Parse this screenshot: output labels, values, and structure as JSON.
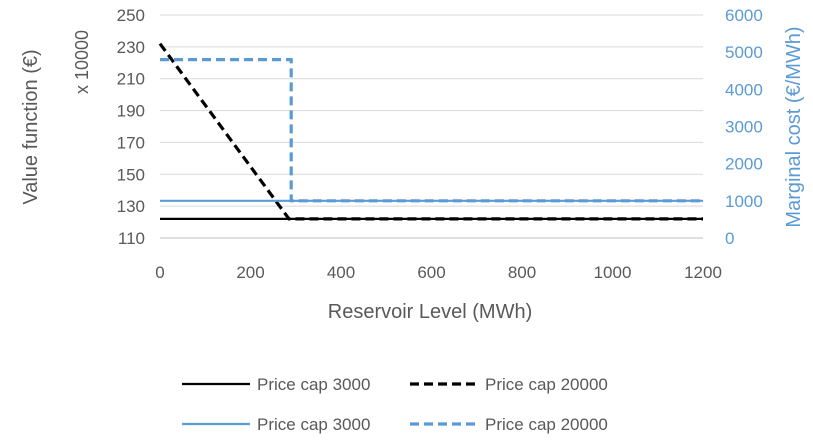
{
  "chart_data": {
    "type": "line",
    "xlabel": "Reservoir Level (MWh)",
    "xlim": [
      0,
      1200
    ],
    "x_ticks": [
      "0",
      "200",
      "400",
      "600",
      "800",
      "1000",
      "1200"
    ],
    "y_left": {
      "label": "Value function (€)",
      "multiplier_label": "x 10000",
      "lim": [
        110,
        250
      ],
      "ticks": [
        "110",
        "130",
        "150",
        "170",
        "190",
        "210",
        "230",
        "250"
      ],
      "color": "#595959"
    },
    "y_right": {
      "label": "Marginal cost (€/MWh)",
      "lim": [
        0,
        6000
      ],
      "ticks": [
        "0",
        "1000",
        "2000",
        "3000",
        "4000",
        "5000",
        "6000"
      ],
      "color": "#5b9bd5"
    },
    "grid": "horizontal",
    "legend_position": "bottom",
    "series": [
      {
        "name": "Price cap 3000",
        "axis": "left",
        "color": "#000000",
        "dash": "solid",
        "x": [
          0,
          1200
        ],
        "y": [
          122,
          122
        ]
      },
      {
        "name": "Price cap 20000",
        "axis": "left",
        "color": "#000000",
        "dash": "dashed",
        "x": [
          0,
          285,
          1200
        ],
        "y": [
          232,
          122,
          122
        ]
      },
      {
        "name": "Price cap 3000",
        "axis": "right",
        "color": "#5b9bd5",
        "dash": "solid",
        "x": [
          0,
          1200
        ],
        "y": [
          1000,
          1000
        ]
      },
      {
        "name": "Price cap 20000",
        "axis": "right",
        "color": "#5b9bd5",
        "dash": "dashed",
        "x": [
          0,
          290,
          290,
          1200
        ],
        "y": [
          4800,
          4800,
          1000,
          1000
        ]
      }
    ]
  }
}
